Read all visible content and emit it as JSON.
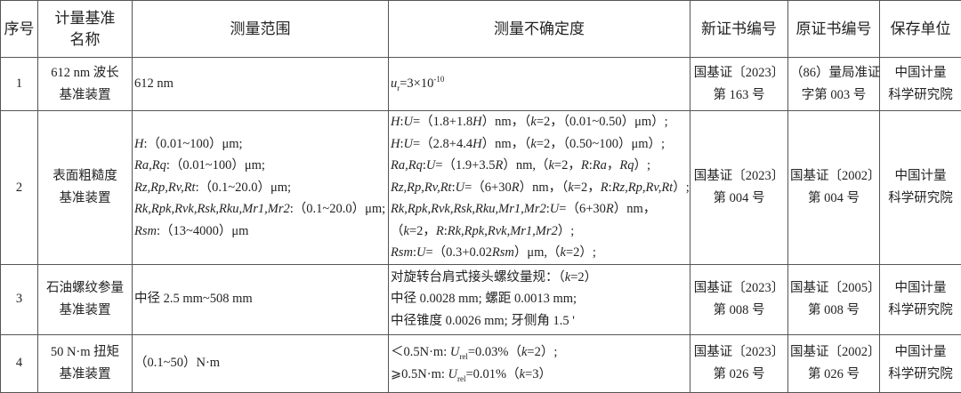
{
  "headers": [
    "序号",
    "计量基准\n名称",
    "测量范围",
    "测量不确定度",
    "新证书编号",
    "原证书编号",
    "保存单位"
  ],
  "rows": [
    {
      "no": "1",
      "name": [
        "612 nm 波长",
        "基准装置"
      ],
      "range": [
        [
          "612 nm"
        ]
      ],
      "uncertainty": [
        [
          {
            "i": "u"
          },
          {
            "sub": "r"
          },
          "=3×10",
          {
            "sup": "-10"
          }
        ]
      ],
      "new_cert": [
        "国基证〔2023〕",
        "第 163 号"
      ],
      "old_cert": [
        "（86）量局准证",
        "字第 003 号"
      ],
      "unit": [
        "中国计量",
        "科学研究院"
      ]
    },
    {
      "no": "2",
      "name": [
        "表面粗糙度",
        "基准装置"
      ],
      "range": [
        [
          {
            "i": "H"
          },
          ":（0.01~100）μm;"
        ],
        [
          {
            "i": "Ra,Rq"
          },
          ":（0.01~100）μm;"
        ],
        [
          {
            "i": "Rz,Rp,Rv,Rt"
          },
          ":（0.1~20.0）μm;"
        ],
        [
          {
            "i": "Rk,Rpk,Rvk,Rsk,Rku,Mr1,Mr2"
          },
          ":（0.1~20.0）μm;"
        ],
        [
          {
            "i": "Rsm"
          },
          ":（13~4000）μm"
        ]
      ],
      "uncertainty": [
        [
          {
            "i": "H"
          },
          ":",
          {
            "i": "U"
          },
          "=（1.8+1.8",
          {
            "i": "H"
          },
          "）nm，（",
          {
            "i": "k"
          },
          "=2，（0.01~0.50）μm）;"
        ],
        [
          {
            "i": "H"
          },
          ":",
          {
            "i": "U"
          },
          "=（2.8+4.4",
          {
            "i": "H"
          },
          "）nm，（",
          {
            "i": "k"
          },
          "=2，（0.50~100）μm）;"
        ],
        [
          {
            "i": "Ra,Rq"
          },
          ":",
          {
            "i": "U"
          },
          "=（1.9+3.5",
          {
            "i": "R"
          },
          "）nm,（",
          {
            "i": "k"
          },
          "=2，",
          {
            "i": "R"
          },
          ":",
          {
            "i": "Ra"
          },
          "，",
          {
            "i": "Rq"
          },
          "）;"
        ],
        [
          {
            "i": "Rz,Rp,Rv,Rt"
          },
          ":",
          {
            "i": "U"
          },
          "=（6+30",
          {
            "i": "R"
          },
          "）nm，（",
          {
            "i": "k"
          },
          "=2，",
          {
            "i": "R"
          },
          ":",
          {
            "i": "Rz,Rp,Rv,Rt"
          },
          "）;"
        ],
        [
          {
            "i": "Rk,Rpk,Rvk,Rsk,Rku,Mr1,Mr2"
          },
          ":",
          {
            "i": "U"
          },
          "=（6+30",
          {
            "i": "R"
          },
          "）nm，"
        ],
        [
          "（",
          {
            "i": "k"
          },
          "=2，",
          {
            "i": "R"
          },
          ":",
          {
            "i": "Rk,Rpk,Rvk,Mr1,Mr2"
          },
          "）;"
        ],
        [
          {
            "i": "Rsm"
          },
          ":",
          {
            "i": "U"
          },
          "=（0.3+0.02",
          {
            "i": "Rsm"
          },
          "）μm,（",
          {
            "i": "k"
          },
          "=2）;"
        ]
      ],
      "new_cert": [
        "国基证〔2023〕",
        "第 004 号"
      ],
      "old_cert": [
        "国基证〔2002〕",
        "第 004 号"
      ],
      "unit": [
        "中国计量",
        "科学研究院"
      ]
    },
    {
      "no": "3",
      "name": [
        "石油螺纹参量",
        "基准装置"
      ],
      "range": [
        [
          "中径 2.5 mm~508 mm"
        ]
      ],
      "uncertainty": [
        [
          "对旋转台肩式接头螺纹量规：（",
          {
            "i": "k"
          },
          "=2）"
        ],
        [
          "中径 0.0028 mm;  螺距 0.0013 mm;"
        ],
        [
          "中径锥度 0.0026 mm;  牙侧角 1.5 '"
        ]
      ],
      "new_cert": [
        "国基证〔2023〕",
        "第 008 号"
      ],
      "old_cert": [
        "国基证〔2005〕",
        "第 008 号"
      ],
      "unit": [
        "中国计量",
        "科学研究院"
      ]
    },
    {
      "no": "4",
      "name": [
        "50 N·m 扭矩",
        "基准装置"
      ],
      "range": [
        [
          "（0.1~50）N·m"
        ]
      ],
      "uncertainty": [
        [
          "＜0.5N·m:  ",
          {
            "i": "U"
          },
          {
            "sub": "rel"
          },
          "=0.03%（",
          {
            "i": "k"
          },
          "=2）;"
        ],
        [
          "⩾0.5N·m:  ",
          {
            "i": "U"
          },
          {
            "sub": "rel"
          },
          "=0.01%（",
          {
            "i": "k"
          },
          "=3）"
        ]
      ],
      "new_cert": [
        "国基证〔2023〕",
        "第 026 号"
      ],
      "old_cert": [
        "国基证〔2002〕",
        "第 026 号"
      ],
      "unit": [
        "中国计量",
        "科学研究院"
      ]
    }
  ]
}
